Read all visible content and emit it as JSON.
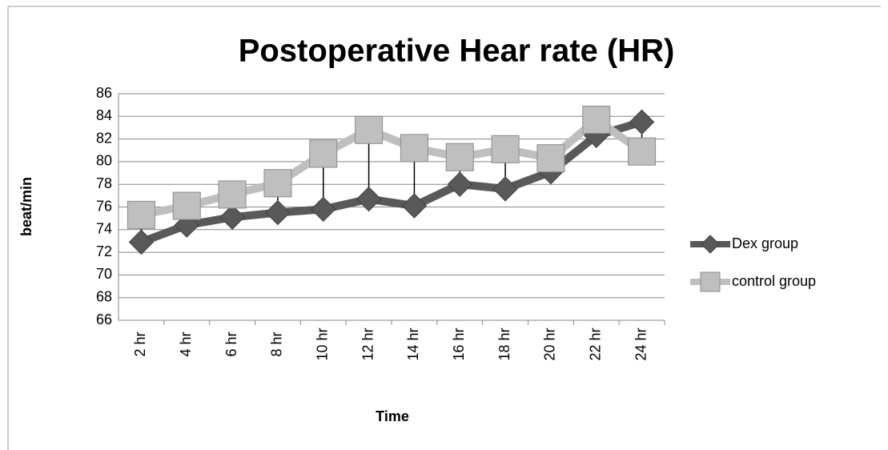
{
  "chart_data": {
    "type": "line",
    "title": "Postoperative Hear rate (HR)",
    "xlabel": "Time",
    "ylabel": "beat/min",
    "categories": [
      "2 hr",
      "4 hr",
      "6 hr",
      "8 hr",
      "10 hr",
      "12 hr",
      "14 hr",
      "16 hr",
      "18 hr",
      "20 hr",
      "22 hr",
      "24 hr"
    ],
    "series": [
      {
        "name": "Dex group",
        "color": "#595959",
        "marker": "diamond",
        "values": [
          72.9,
          74.4,
          75.1,
          75.5,
          75.8,
          76.7,
          76.1,
          78.0,
          77.6,
          79.1,
          82.3,
          83.5
        ]
      },
      {
        "name": "control group",
        "color": "#bfbfbf",
        "marker": "square",
        "values": [
          75.3,
          76.1,
          77.1,
          78.1,
          80.7,
          82.8,
          81.2,
          80.4,
          81.1,
          80.3,
          83.7,
          80.9
        ]
      }
    ],
    "ylim": [
      66,
      86
    ],
    "yticks": [
      66,
      68,
      70,
      72,
      74,
      76,
      78,
      80,
      82,
      84,
      86
    ],
    "grid": true,
    "high_low_lines": true,
    "legend": "right"
  }
}
